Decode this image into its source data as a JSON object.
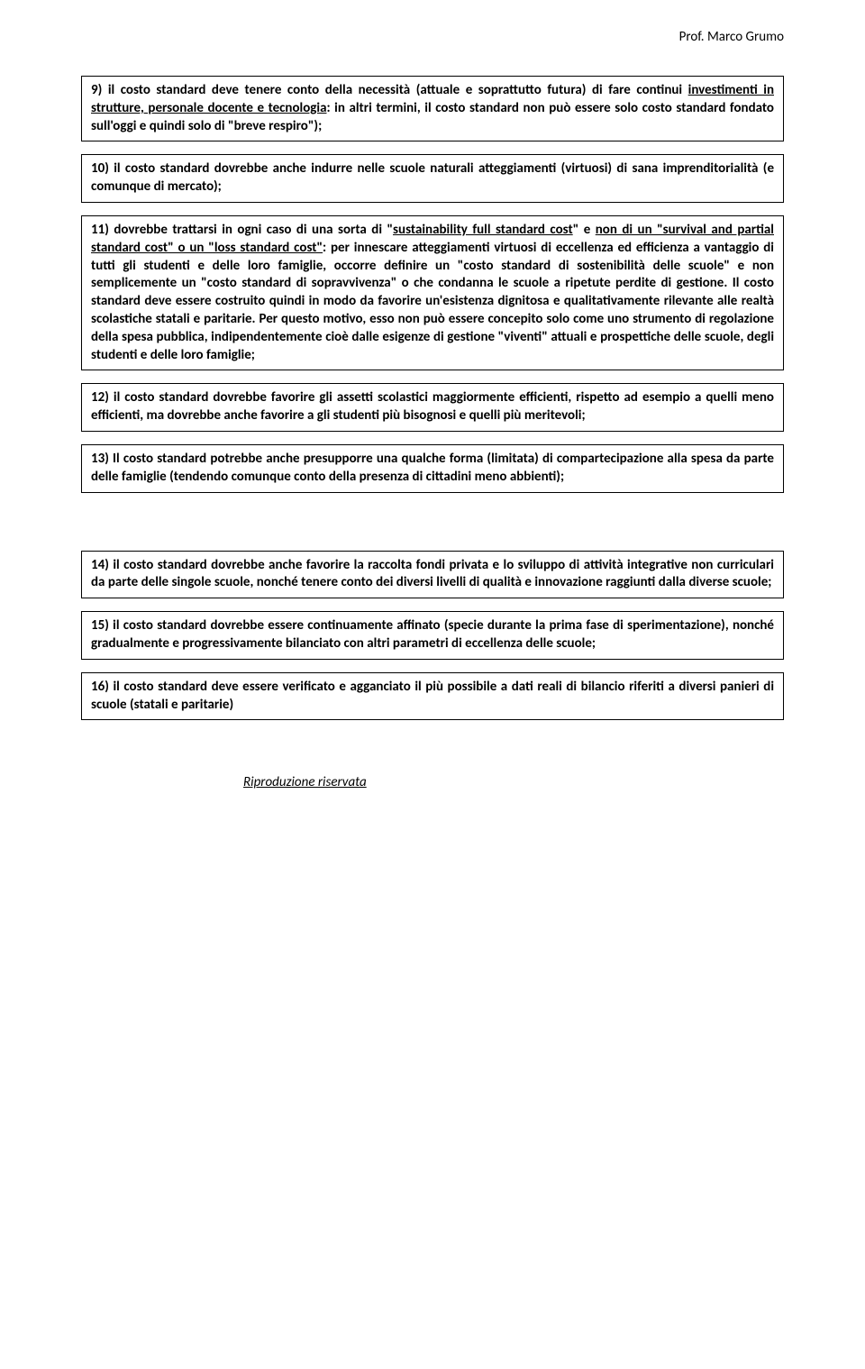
{
  "header": {
    "author": "Prof. Marco Grumo"
  },
  "boxes": {
    "b9": {
      "num": "9)",
      "pre": "il costo standard deve tenere conto della necessità (attuale e soprattutto futura) di fare continui ",
      "uline": "investimenti in strutture, personale docente e tecnologia",
      "post": ": in altri termini,  il costo standard non può essere solo costo standard fondato sull'oggi e quindi solo di \"breve respiro\");"
    },
    "b10": {
      "num": "10)",
      "text": "il costo standard dovrebbe anche indurre nelle scuole naturali atteggiamenti (virtuosi) di sana imprenditorialità (e comunque di mercato);"
    },
    "b11": {
      "num": "11)",
      "pre1": "dovrebbe trattarsi in ogni caso di una sorta di \"",
      "u1": "sustainability full standard cost",
      "mid1": "\" e ",
      "u2": "non di un \"survival and partial standard cost\" o un \"loss standard cost\"",
      "post1": ": per innescare atteggiamenti virtuosi di eccellenza ed efficienza a vantaggio di tutti gli studenti e delle loro famiglie,  occorre definire  un \"costo standard di sostenibilità delle scuole\" e non semplicemente un \"costo standard di sopravvivenza\" o che condanna le scuole a ripetute perdite di gestione. Il costo standard deve essere costruito quindi in modo da favorire un'esistenza dignitosa e qualitativamente rilevante alle realtà scolastiche statali e paritarie. Per questo motivo, esso non può essere concepito solo come uno strumento di regolazione della spesa pubblica, indipendentemente cioè dalle esigenze di gestione \"viventi\" attuali e prospettiche delle scuole, degli studenti e delle loro famiglie;"
    },
    "b12": {
      "num": "12)",
      "text": "il costo standard dovrebbe  favorire gli assetti scolastici maggiormente efficienti, rispetto ad esempio a quelli meno efficienti, ma dovrebbe anche favorire a gli studenti più bisognosi e quelli più meritevoli;"
    },
    "b13": {
      "num": "13)",
      "text": "Il costo standard potrebbe anche presupporre una qualche forma (limitata) di compartecipazione alla spesa da parte delle famiglie (tendendo comunque conto della presenza di cittadini meno abbienti);"
    },
    "b14": {
      "num": "14)",
      "text": "il costo standard dovrebbe anche favorire la raccolta fondi privata e lo sviluppo di attività integrative non curriculari da parte delle singole scuole, nonché  tenere conto dei diversi livelli di qualità e innovazione raggiunti dalla diverse scuole;"
    },
    "b15": {
      "num": "15)",
      "text": "il costo standard dovrebbe essere continuamente affinato (specie durante la prima fase di sperimentazione), nonché gradualmente e progressivamente bilanciato con altri parametri di eccellenza delle scuole;"
    },
    "b16": {
      "num": "16)",
      "text": "il costo standard deve essere verificato e agganciato il più possibile a dati reali di bilancio riferiti a diversi panieri di scuole (statali e paritarie)"
    }
  },
  "footer": {
    "text": "Riproduzione riservata"
  }
}
